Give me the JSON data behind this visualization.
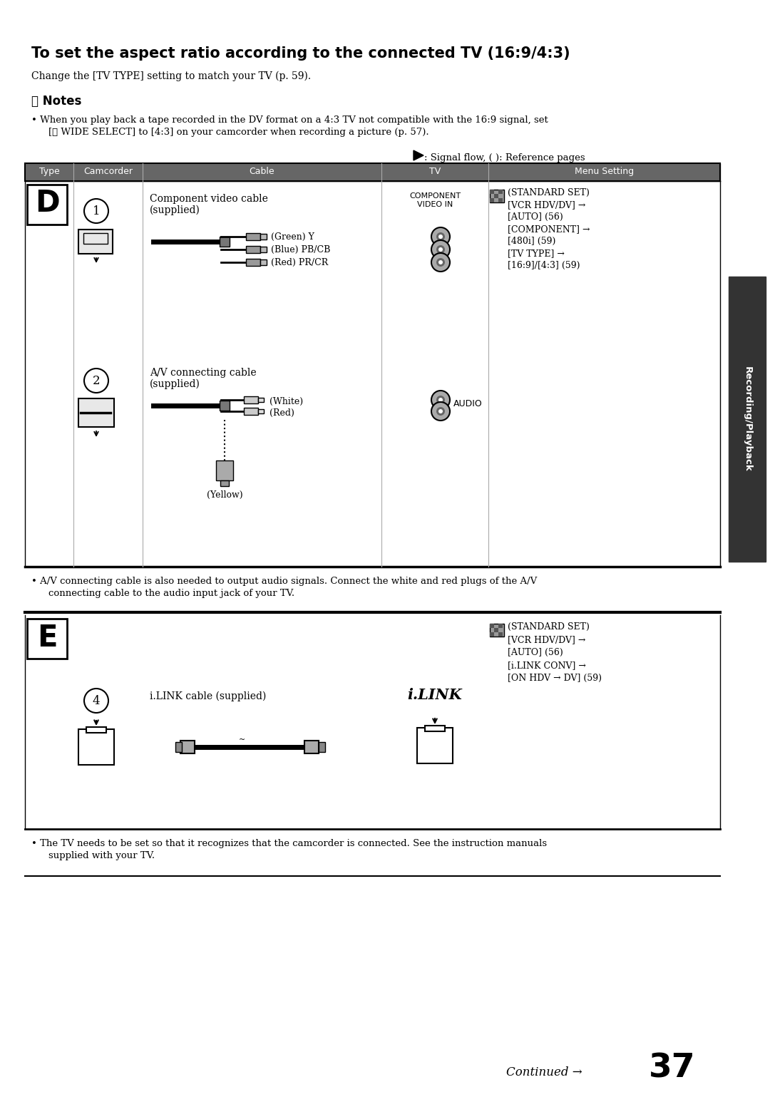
{
  "title": "To set the aspect ratio according to the connected TV (16:9/4:3)",
  "subtitle": "Change the [TV TYPE] setting to match your TV (p. 59).",
  "notes_header": "Ⓐ Notes",
  "note1_line1": "When you play back a tape recorded in the DV format on a 4:3 TV not compatible with the 16:9 signal, set",
  "note1_line2": "[Ⓐ WIDE SELECT] to [4:3] on your camcorder when recording a picture (p. 57).",
  "signal_flow_label": ": Signal flow, ( ): Reference pages",
  "table_headers": [
    "Type",
    "Camcorder",
    "Cable",
    "TV",
    "Menu Setting"
  ],
  "table_header_bg": "#666666",
  "section_d_label": "D",
  "section_e_label": "E",
  "cable1_name_l1": "Component video cable",
  "cable1_name_l2": "(supplied)",
  "cable2_name_l1": "A/V connecting cable",
  "cable2_name_l2": "(supplied)",
  "cable4_name": "i.LINK cable (supplied)",
  "tv_label1_l1": "COMPONENT",
  "tv_label1_l2": "VIDEO IN",
  "tv_label2": "AUDIO",
  "tv_label3": "i.LINK",
  "green_label": "(Green) Y",
  "blue_label": "(Blue) PB/CB",
  "red_label": "(Red) PR/CR",
  "white_label": "(White)",
  "red2_label": "(Red)",
  "yellow_label": "(Yellow)",
  "menu_d_l1": "(STANDARD SET)",
  "menu_d_l2": "[VCR HDV/DV] →",
  "menu_d_l3": "[AUTO] (56)",
  "menu_d_l4": "[COMPONENT] →",
  "menu_d_l5": "[480i] (59)",
  "menu_d_l6": "[TV TYPE] →",
  "menu_d_l7": "[16:9]/[4:3] (59)",
  "menu_e_l1": "(STANDARD SET)",
  "menu_e_l2": "[VCR HDV/DV] →",
  "menu_e_l3": "[AUTO] (56)",
  "menu_e_l4": "[i.LINK CONV] →",
  "menu_e_l5": "[ON HDV → DV] (59)",
  "note_av_l1": "A/V connecting cable is also needed to output audio signals. Connect the white and red plugs of the A/V",
  "note_av_l2": "connecting cable to the audio input jack of your TV.",
  "note_tv_l1": "The TV needs to be set so that it recognizes that the camcorder is connected. See the instruction manuals",
  "note_tv_l2": "supplied with your TV.",
  "continued_text": "Continued →",
  "page_num": "37",
  "side_label": "Recording/Playback",
  "bg_color": "#ffffff"
}
